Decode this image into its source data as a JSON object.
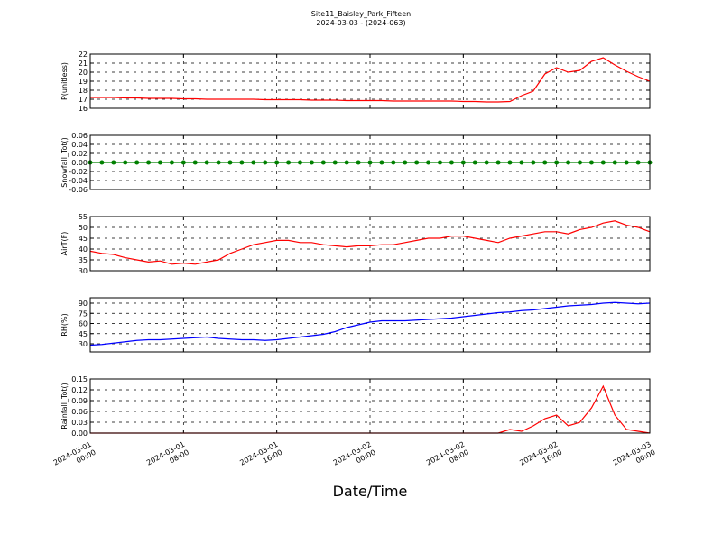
{
  "figure": {
    "title": "Site11_Baisley_Park_Fifteen",
    "subtitle": "2024-03-03 - (2024-063)",
    "xlabel": "Date/Time",
    "xlim": [
      "2024-03-01 00:00",
      "2024-03-03 00:00"
    ],
    "xticks": [
      "2024-03-01 00:00",
      "2024-03-01 08:00",
      "2024-03-01 16:00",
      "2024-03-02 00:00",
      "2024-03-02 08:00",
      "2024-03-02 16:00",
      "2024-03-03 00:00"
    ],
    "grid": true,
    "x": [
      "2024-03-01 00:00",
      "2024-03-01 01:00",
      "2024-03-01 02:00",
      "2024-03-01 03:00",
      "2024-03-01 04:00",
      "2024-03-01 05:00",
      "2024-03-01 06:00",
      "2024-03-01 07:00",
      "2024-03-01 08:00",
      "2024-03-01 09:00",
      "2024-03-01 10:00",
      "2024-03-01 11:00",
      "2024-03-01 12:00",
      "2024-03-01 13:00",
      "2024-03-01 14:00",
      "2024-03-01 15:00",
      "2024-03-01 16:00",
      "2024-03-01 17:00",
      "2024-03-01 18:00",
      "2024-03-01 19:00",
      "2024-03-01 20:00",
      "2024-03-01 21:00",
      "2024-03-01 22:00",
      "2024-03-01 23:00",
      "2024-03-02 00:00",
      "2024-03-02 01:00",
      "2024-03-02 02:00",
      "2024-03-02 03:00",
      "2024-03-02 04:00",
      "2024-03-02 05:00",
      "2024-03-02 06:00",
      "2024-03-02 07:00",
      "2024-03-02 08:00",
      "2024-03-02 09:00",
      "2024-03-02 10:00",
      "2024-03-02 11:00",
      "2024-03-02 12:00",
      "2024-03-02 13:00",
      "2024-03-02 14:00",
      "2024-03-02 15:00",
      "2024-03-02 16:00",
      "2024-03-02 17:00",
      "2024-03-02 18:00",
      "2024-03-02 19:00",
      "2024-03-02 20:00",
      "2024-03-02 21:00",
      "2024-03-02 22:00",
      "2024-03-02 23:00",
      "2024-03-03 00:00"
    ]
  },
  "chart_data": [
    {
      "type": "line",
      "ylabel": "P(unitless)",
      "ylim": [
        16,
        22
      ],
      "yticks": [
        16,
        17,
        18,
        19,
        20,
        21,
        22
      ],
      "series": [
        {
          "color": "#ff0000",
          "values": [
            17.2,
            17.2,
            17.2,
            17.15,
            17.15,
            17.1,
            17.1,
            17.1,
            17.05,
            17.05,
            17.0,
            17.0,
            17.0,
            17.0,
            17.0,
            16.95,
            16.95,
            16.95,
            16.95,
            16.9,
            16.9,
            16.9,
            16.85,
            16.85,
            16.85,
            16.85,
            16.8,
            16.8,
            16.8,
            16.8,
            16.8,
            16.8,
            16.75,
            16.75,
            16.7,
            16.7,
            16.75,
            17.4,
            17.9,
            19.8,
            20.5,
            20.0,
            20.2,
            21.2,
            21.6,
            20.8,
            20.1,
            19.5,
            19.0
          ]
        }
      ]
    },
    {
      "type": "line",
      "ylabel": "Snowfall_Tot()",
      "ylim": [
        -0.06,
        0.06
      ],
      "yticks": [
        -0.06,
        -0.04,
        -0.02,
        {
          "value": 0,
          "label": "0.00"
        },
        0.02,
        0.04,
        0.06
      ],
      "marker": true,
      "series": [
        {
          "color": "#008000",
          "values": [
            0,
            0,
            0,
            0,
            0,
            0,
            0,
            0,
            0,
            0,
            0,
            0,
            0,
            0,
            0,
            0,
            0,
            0,
            0,
            0,
            0,
            0,
            0,
            0,
            0,
            0,
            0,
            0,
            0,
            0,
            0,
            0,
            0,
            0,
            0,
            0,
            0,
            0,
            0,
            0,
            0,
            0,
            0,
            0,
            0,
            0,
            0,
            0,
            0
          ]
        }
      ]
    },
    {
      "type": "line",
      "ylabel": "AirT(F)",
      "ylim": [
        30,
        55
      ],
      "yticks": [
        30,
        35,
        40,
        45,
        50,
        55
      ],
      "series": [
        {
          "color": "#ff0000",
          "values": [
            39,
            38,
            37.5,
            36,
            35,
            34,
            34.5,
            33,
            33.5,
            33,
            34,
            35,
            38,
            40,
            42,
            43,
            44,
            44,
            43,
            43,
            42,
            41.5,
            41,
            41.5,
            41.5,
            42,
            42,
            43,
            44,
            45,
            45,
            46,
            46,
            45,
            44,
            43,
            45,
            46,
            47,
            48,
            48,
            47,
            49,
            50,
            52,
            53,
            51,
            50,
            48
          ]
        }
      ]
    },
    {
      "type": "line",
      "ylabel": "RH(%)",
      "ylim": [
        18,
        98
      ],
      "yticks": [
        30,
        45,
        60,
        75,
        90
      ],
      "series": [
        {
          "color": "#0000ff",
          "values": [
            28,
            29,
            31,
            33,
            35,
            36,
            36,
            37,
            38,
            39,
            40,
            38,
            37,
            36,
            36,
            35,
            36,
            38,
            40,
            42,
            44,
            48,
            54,
            58,
            62,
            64,
            64,
            64,
            65,
            66,
            67,
            68,
            70,
            72,
            74,
            76,
            77,
            79,
            80,
            82,
            84,
            86,
            87,
            88,
            90,
            91,
            90,
            89,
            90
          ]
        }
      ]
    },
    {
      "type": "line",
      "ylabel": "Rainfall_Tot()",
      "ylim": [
        0,
        0.15
      ],
      "yticks": [
        {
          "value": 0,
          "label": "0.00"
        },
        0.03,
        0.06,
        0.09,
        0.12,
        0.15
      ],
      "series": [
        {
          "color": "#ff0000",
          "values": [
            0,
            0,
            0,
            0,
            0,
            0,
            0,
            0,
            0,
            0,
            0,
            0,
            0,
            0,
            0,
            0,
            0,
            0,
            0,
            0,
            0,
            0,
            0,
            0,
            0,
            0,
            0,
            0,
            0,
            0,
            0,
            0,
            0,
            0,
            0,
            0,
            0.01,
            0.005,
            0.02,
            0.04,
            0.05,
            0.02,
            0.03,
            0.07,
            0.13,
            0.05,
            0.01,
            0.005,
            0
          ]
        }
      ]
    }
  ]
}
